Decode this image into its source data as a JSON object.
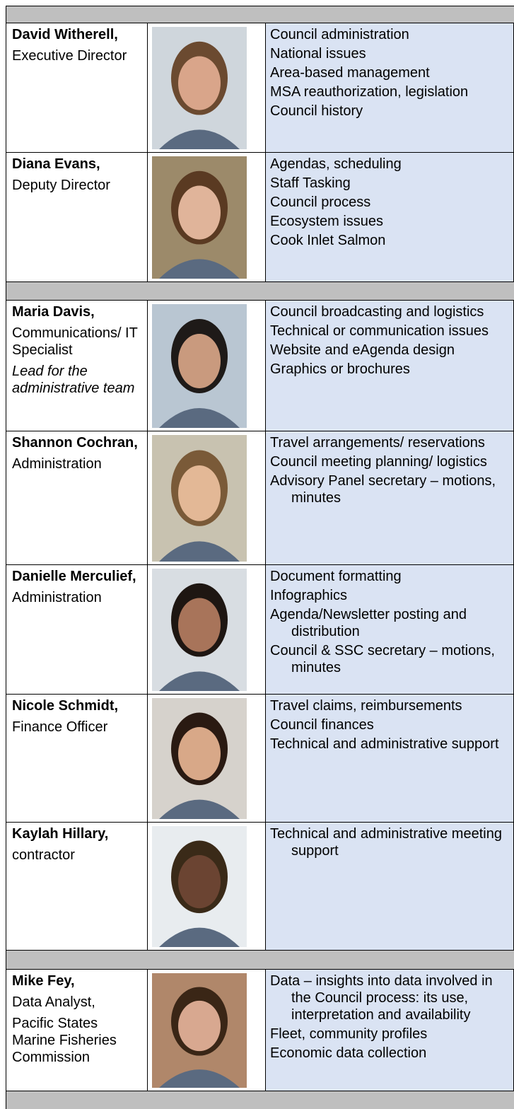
{
  "rows": [
    {
      "name": "David Witherell,",
      "role": [
        "Executive Director"
      ],
      "duties": [
        "Council administration",
        "National issues",
        "Area-based management",
        "MSA reauthorization, legislation",
        "Council history"
      ]
    },
    {
      "name": "Diana Evans,",
      "role": [
        "Deputy Director"
      ],
      "duties": [
        "Agendas, scheduling",
        "Staff Tasking",
        "Council process",
        "Ecosystem issues",
        "Cook Inlet Salmon"
      ]
    },
    {
      "name": "Maria Davis,",
      "role": [
        "Communications/ IT Specialist"
      ],
      "note": "Lead for the administrative team",
      "duties": [
        "Council broadcasting and logistics",
        "Technical or communication issues",
        "Website and eAgenda design",
        "Graphics or brochures"
      ]
    },
    {
      "name": "Shannon Cochran,",
      "role": [
        "Administration"
      ],
      "duties": [
        "Travel arrangements/ reservations",
        "Council meeting planning/ logistics",
        "Advisory Panel secretary – motions, minutes"
      ]
    },
    {
      "name": "Danielle Merculief,",
      "role": [
        "Administration"
      ],
      "duties": [
        "Document formatting",
        "Infographics",
        "Agenda/Newsletter posting and distribution",
        "Council & SSC secretary – motions, minutes"
      ]
    },
    {
      "name": "Nicole Schmidt,",
      "role": [
        "Finance Officer"
      ],
      "duties": [
        "Travel claims, reimbursements",
        "Council finances",
        "Technical and administrative support"
      ]
    },
    {
      "name": "Kaylah Hillary,",
      "role": [
        "contractor"
      ],
      "duties": [
        "Technical and administrative meeting support"
      ]
    },
    {
      "name": "Mike Fey,",
      "role": [
        "Data Analyst,",
        "Pacific States Marine Fisheries Commission"
      ],
      "duties": [
        "Data – insights into data involved in the Council process: its use, interpretation and availability",
        "Fleet, community profiles",
        "Economic data collection"
      ]
    }
  ]
}
